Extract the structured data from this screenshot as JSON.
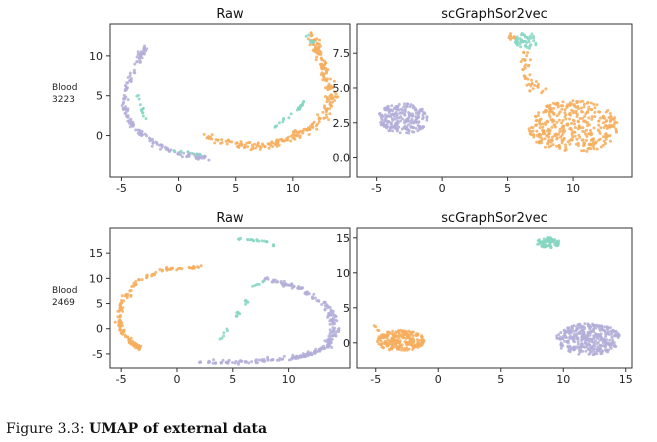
{
  "colors": {
    "purple": "#b3aed8",
    "orange": "#f6ad5c",
    "teal": "#86d6c2"
  },
  "rows": [
    {
      "label_line1": "Blood",
      "label_line2": "3223"
    },
    {
      "label_line1": "Blood",
      "label_line2": "2469"
    }
  ],
  "caption": {
    "prefix": "Figure 3.3:",
    "title": "UMAP of external data"
  },
  "chart_data": [
    {
      "type": "scatter",
      "title": "Raw",
      "xlim": [
        -6,
        15
      ],
      "ylim": [
        -5.2,
        14
      ],
      "xticks": [
        -5,
        0,
        5,
        10
      ],
      "yticks": [
        0,
        5,
        10
      ],
      "clusters": [
        {
          "color": "purple",
          "path": [
            [
              -3,
              11
            ],
            [
              -3.6,
              9
            ],
            [
              -4.5,
              6.5
            ],
            [
              -4.8,
              4
            ],
            [
              -4.2,
              1.5
            ],
            [
              -2.5,
              -0.8
            ],
            [
              -0.5,
              -2.1
            ],
            [
              1.5,
              -2.6
            ],
            [
              2.6,
              -2.9
            ]
          ],
          "width": 0.45,
          "n": 160
        },
        {
          "color": "orange",
          "path": [
            [
              2.5,
              0
            ],
            [
              4,
              -0.8
            ],
            [
              6,
              -1.3
            ],
            [
              8,
              -1.2
            ],
            [
              9.6,
              -0.3
            ],
            [
              11.5,
              0.8
            ],
            [
              13,
              2.8
            ],
            [
              13.4,
              5
            ],
            [
              13,
              7
            ],
            [
              12.6,
              9
            ],
            [
              12,
              11
            ],
            [
              11.6,
              12.8
            ]
          ],
          "width": 0.7,
          "n": 260
        },
        {
          "color": "teal",
          "path": [
            [
              -3.5,
              5
            ],
            [
              -3.2,
              3
            ],
            [
              -2.8,
              2
            ]
          ],
          "width": 0.25,
          "n": 12
        },
        {
          "color": "teal",
          "path": [
            [
              -0.5,
              -1.8
            ],
            [
              1,
              -2.2
            ],
            [
              2.2,
              -2.4
            ]
          ],
          "width": 0.2,
          "n": 10
        },
        {
          "color": "teal",
          "path": [
            [
              8.5,
              1.2
            ],
            [
              9.5,
              2.3
            ],
            [
              10.5,
              3.3
            ],
            [
              11,
              4.2
            ]
          ],
          "width": 0.3,
          "n": 22
        },
        {
          "color": "teal",
          "path": [
            [
              11.3,
              12.5
            ],
            [
              11.7,
              11.6
            ]
          ],
          "width": 0.25,
          "n": 8
        }
      ]
    },
    {
      "type": "scatter",
      "title": "scGraphSor2vec",
      "xlim": [
        -6.5,
        14.5
      ],
      "ylim": [
        -1.4,
        9.6
      ],
      "xticks": [
        -5,
        0,
        5,
        10
      ],
      "yticks": [
        0.0,
        2.5,
        5.0,
        7.5
      ],
      "clusters": [
        {
          "color": "purple",
          "blob": [
            -3,
            2.8
          ],
          "rx": 1.9,
          "ry": 1.1,
          "n": 220
        },
        {
          "color": "orange",
          "blob": [
            10,
            2.2
          ],
          "rx": 3.4,
          "ry": 1.9,
          "n": 360
        },
        {
          "color": "orange",
          "path": [
            [
              6.2,
              7.5
            ],
            [
              6.5,
              5.8
            ],
            [
              7.5,
              4.7
            ]
          ],
          "width": 0.7,
          "n": 40
        },
        {
          "color": "teal",
          "blob": [
            6.4,
            8.4
          ],
          "rx": 0.9,
          "ry": 0.6,
          "n": 45
        },
        {
          "color": "orange",
          "blob": [
            5.3,
            8.6
          ],
          "rx": 0.3,
          "ry": 0.35,
          "n": 8
        }
      ]
    },
    {
      "type": "scatter",
      "title": "Raw",
      "xlim": [
        -6,
        15.5
      ],
      "ylim": [
        -7.8,
        20
      ],
      "xticks": [
        -5,
        0,
        5,
        10
      ],
      "yticks": [
        -5,
        0,
        5,
        10,
        15
      ],
      "clusters": [
        {
          "color": "purple",
          "path": [
            [
              8,
              10
            ],
            [
              11,
              8
            ],
            [
              13.5,
              4.5
            ],
            [
              14.2,
              0
            ],
            [
              13.5,
              -3.5
            ],
            [
              11,
              -5.6
            ],
            [
              7,
              -6.5
            ],
            [
              2,
              -6.7
            ]
          ],
          "width": 0.6,
          "n": 260
        },
        {
          "color": "orange",
          "path": [
            [
              2,
              12.2
            ],
            [
              -1,
              11.8
            ],
            [
              -3.5,
              9.5
            ],
            [
              -5,
              5.5
            ],
            [
              -5.2,
              2
            ],
            [
              -4.8,
              -1
            ],
            [
              -4,
              -3
            ],
            [
              -3.3,
              -3.8
            ]
          ],
          "width": 0.5,
          "n": 140
        },
        {
          "color": "teal",
          "path": [
            [
              5.5,
              17.8
            ],
            [
              7.2,
              17.5
            ],
            [
              8.3,
              17.3
            ],
            [
              8.8,
              16.2
            ]
          ],
          "width": 0.25,
          "n": 20
        },
        {
          "color": "teal",
          "path": [
            [
              4,
              -2
            ],
            [
              5.2,
              2.2
            ],
            [
              6.5,
              6
            ]
          ],
          "width": 0.3,
          "n": 18
        },
        {
          "color": "teal",
          "path": [
            [
              6.8,
              8.3
            ],
            [
              7.8,
              9.5
            ]
          ],
          "width": 0.2,
          "n": 6
        }
      ]
    },
    {
      "type": "scatter",
      "title": "scGraphSor2vec",
      "xlim": [
        -6.5,
        15.5
      ],
      "ylim": [
        -3.6,
        16.4
      ],
      "xticks": [
        -5,
        0,
        5,
        10,
        15
      ],
      "yticks": [
        0,
        5,
        10,
        15
      ],
      "clusters": [
        {
          "color": "purple",
          "blob": [
            12,
            0.5
          ],
          "rx": 2.6,
          "ry": 2.3,
          "n": 340
        },
        {
          "color": "orange",
          "blob": [
            -3,
            0.3
          ],
          "rx": 1.9,
          "ry": 1.5,
          "n": 210
        },
        {
          "color": "orange",
          "path": [
            [
              -5.2,
              2.5
            ],
            [
              -4.8,
              1.8
            ]
          ],
          "width": 0.15,
          "n": 4
        },
        {
          "color": "teal",
          "blob": [
            8.8,
            14.3
          ],
          "rx": 0.9,
          "ry": 0.75,
          "n": 75
        }
      ]
    }
  ]
}
